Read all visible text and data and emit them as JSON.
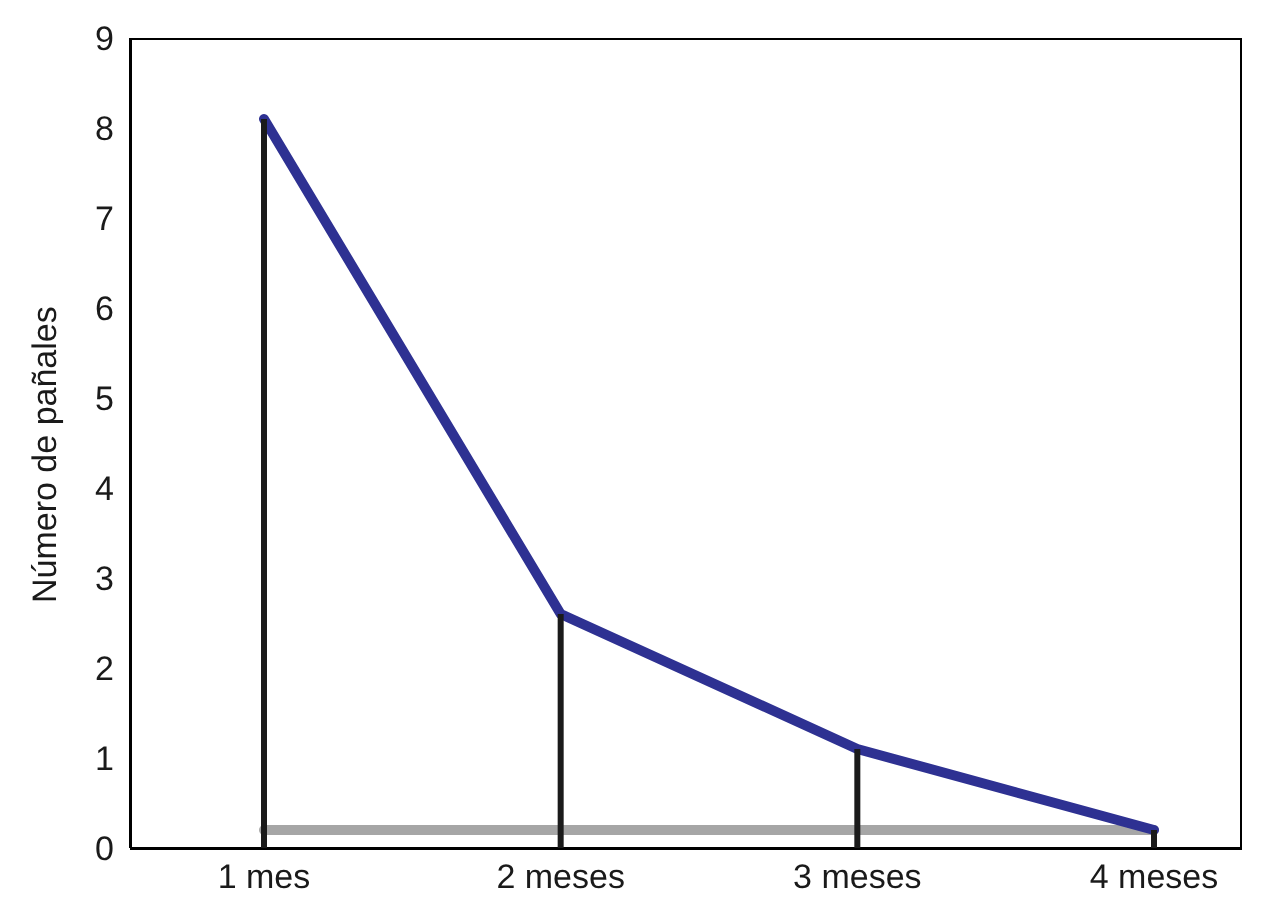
{
  "chart_data": {
    "type": "line",
    "ylabel": "Número de pañales",
    "categories": [
      "1 mes",
      "2 meses",
      "3 meses",
      "4 meses"
    ],
    "series": [
      {
        "color": "#2e3192",
        "values": [
          8.1,
          2.6,
          1.1,
          0.2
        ]
      },
      {
        "type": "bar",
        "color": "#1a1a1a",
        "values": [
          8.1,
          2.6,
          1.1,
          0.2
        ]
      }
    ],
    "ylim": [
      0,
      9
    ],
    "yticks": [
      0,
      1,
      2,
      3,
      4,
      5,
      6,
      7,
      8,
      9
    ],
    "grid": false,
    "legend": false,
    "marker": "none",
    "ref_lines": [
      {
        "axis": "y",
        "value": 0.2,
        "color": "#a6a6a6"
      }
    ]
  }
}
